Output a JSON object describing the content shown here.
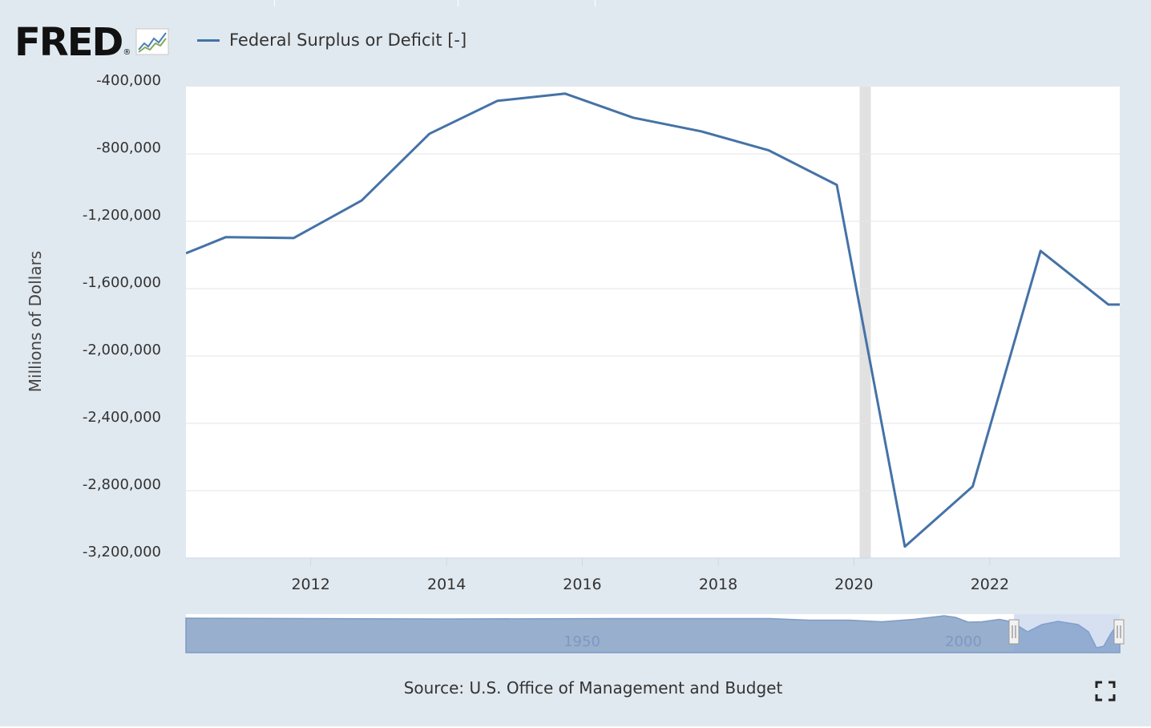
{
  "header": {
    "logo_text": "FRED",
    "logo_registered": "®",
    "legend_label": "Federal Surplus or Deficit [-]"
  },
  "colors": {
    "background": "#e1e9f0",
    "plot_background": "#ffffff",
    "series_line": "#4572a7",
    "recession_band": "#e1e1e1",
    "navigator_fill": "#98afce",
    "navigator_selected": "#8aa6d8",
    "text": "#333333"
  },
  "icons": {
    "logo_chart": "line-chart-icon",
    "fullscreen": "expand-icon"
  },
  "chart_data": {
    "type": "line",
    "title": "",
    "xlabel": "",
    "ylabel": "Millions of Dollars",
    "x_ticks": [
      "2012",
      "2014",
      "2016",
      "2018",
      "2020",
      "2022"
    ],
    "y_ticks": [
      "-400,000",
      "-800,000",
      "-1,200,000",
      "-1,600,000",
      "-2,000,000",
      "-2,400,000",
      "-2,800,000",
      "-3,200,000"
    ],
    "ylim": [
      -3200000,
      -400000
    ],
    "xlim": [
      "2010-03-01",
      "2023-12-01"
    ],
    "grid": "horizontal",
    "recession_shading": [
      [
        "2020-02-01",
        "2020-04-01"
      ]
    ],
    "series": [
      {
        "name": "Federal Surplus or Deficit [-]",
        "x": [
          "2010-10-01",
          "2011-10-01",
          "2012-10-01",
          "2013-10-01",
          "2014-10-01",
          "2015-10-01",
          "2016-10-01",
          "2017-10-01",
          "2018-10-01",
          "2019-10-01",
          "2020-10-01",
          "2021-10-01",
          "2022-10-01",
          "2023-10-01"
        ],
        "values": [
          -1294373,
          -1299599,
          -1076573,
          -679775,
          -484600,
          -441960,
          -584651,
          -665712,
          -779137,
          -983587,
          -3131917,
          -2775306,
          -1375906,
          -1694940
        ]
      }
    ],
    "boundary_values": {
      "left": {
        "x": "2010-03-01",
        "value": -1390000
      },
      "right": {
        "x": "2023-12-01",
        "value": -1695000
      }
    },
    "navigator": {
      "tick_labels": [
        "1950",
        "2000"
      ],
      "selected_range": [
        "2010-03-01",
        "2023-12-01"
      ]
    }
  },
  "footer": {
    "source": "Source: U.S. Office of Management and Budget"
  }
}
